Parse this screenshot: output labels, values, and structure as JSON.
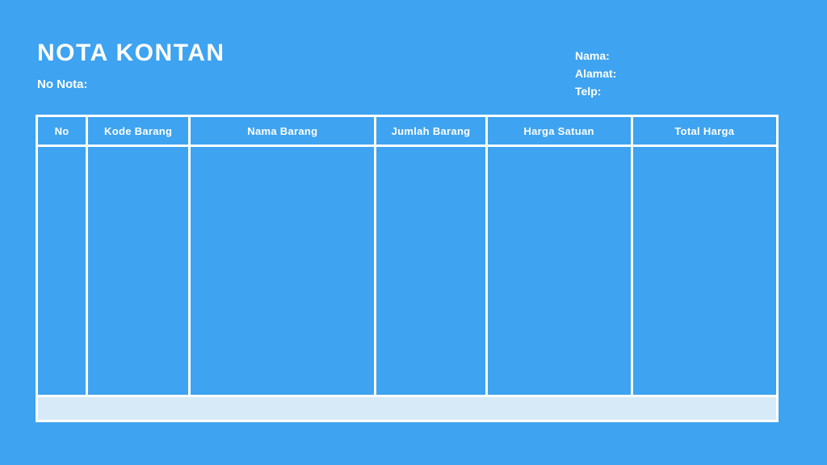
{
  "header": {
    "title": "NOTA KONTAN",
    "no_nota_label": "No Nota:",
    "customer_info": {
      "nama_label": "Nama:",
      "alamat_label": "Alamat:",
      "telp_label": "Telp:"
    }
  },
  "table": {
    "columns": [
      {
        "label": "No"
      },
      {
        "label": "Kode Barang"
      },
      {
        "label": "Nama Barang"
      },
      {
        "label": "Jumlah Barang"
      },
      {
        "label": "Harga Satuan"
      },
      {
        "label": "Total Harga"
      }
    ],
    "rows": [
      {
        "no": "",
        "kode_barang": "",
        "nama_barang": "",
        "jumlah_barang": "",
        "harga_satuan": "",
        "total_harga": ""
      }
    ],
    "footer_text": ""
  },
  "colors": {
    "background": "#3EA3F0",
    "table_border": "#FFFFFF",
    "text": "#FFFFFF",
    "footer_row_background": "#D7EAF8"
  }
}
